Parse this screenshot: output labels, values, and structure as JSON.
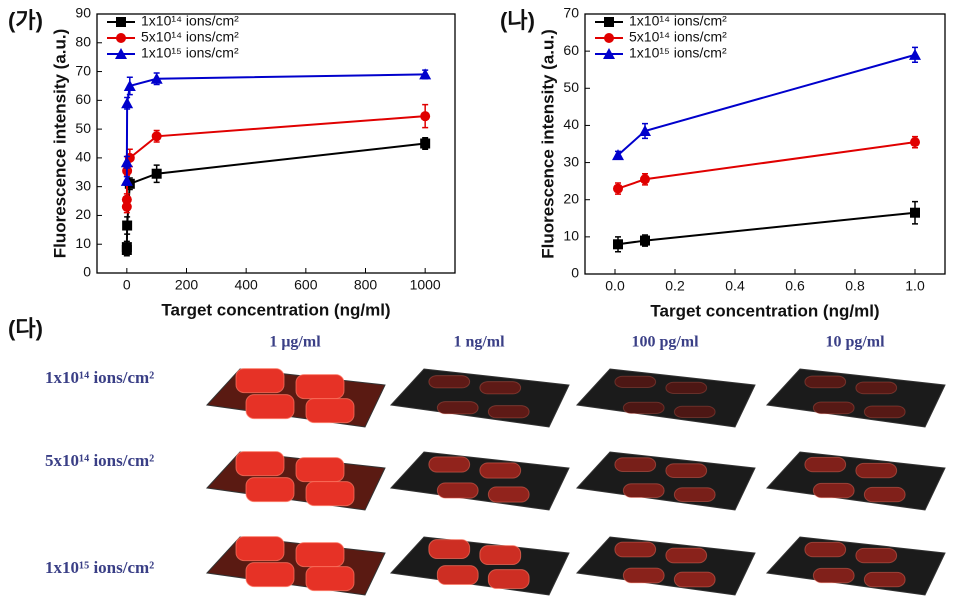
{
  "chart_data": [
    {
      "type": "line",
      "panel_label": "(가)",
      "xlabel": "Target concentration (ng/ml)",
      "ylabel": "Fluorescence intensity (a.u.)",
      "x": [
        0.01,
        0.1,
        1,
        10,
        100,
        1000
      ],
      "series": [
        {
          "name": "1x10¹⁴ ions/cm²",
          "color": "#000000",
          "marker": "square",
          "values": [
            8,
            9,
            16.5,
            31,
            34.5,
            45
          ],
          "errors": [
            2,
            2,
            3,
            2,
            3,
            2
          ]
        },
        {
          "name": "5x10¹⁴ ions/cm²",
          "color": "#e00000",
          "marker": "circle",
          "values": [
            23,
            25.5,
            35.5,
            40,
            47.5,
            54.5
          ],
          "errors": [
            2,
            2,
            1.5,
            3,
            2,
            4
          ]
        },
        {
          "name": "1x10¹⁵ ions/cm²",
          "color": "#0000cc",
          "marker": "triangle",
          "values": [
            32,
            38.5,
            59,
            65,
            67.5,
            69
          ],
          "errors": [
            1.5,
            2,
            2,
            3,
            2,
            1.5
          ]
        }
      ],
      "xlim": [
        -100,
        1100
      ],
      "xticks": [
        0,
        200,
        400,
        600,
        800,
        1000
      ],
      "ylim": [
        0,
        90
      ],
      "yticks": [
        0,
        10,
        20,
        30,
        40,
        50,
        60,
        70,
        80,
        90
      ],
      "legend": "upper left"
    },
    {
      "type": "line",
      "panel_label": "(나)",
      "xlabel": "Target concentration (ng/ml)",
      "ylabel": "Fluorescence intensity (a.u.)",
      "x": [
        0.01,
        0.1,
        1
      ],
      "series": [
        {
          "name": "1x10¹⁴ ions/cm²",
          "color": "#000000",
          "marker": "square",
          "values": [
            8,
            9,
            16.5
          ],
          "errors": [
            2,
            1.5,
            3
          ]
        },
        {
          "name": "5x10¹⁴ ions/cm²",
          "color": "#e00000",
          "marker": "circle",
          "values": [
            23,
            25.5,
            35.5
          ],
          "errors": [
            1.5,
            1.5,
            1.5
          ]
        },
        {
          "name": "1x10¹⁵ ions/cm²",
          "color": "#0000cc",
          "marker": "triangle",
          "values": [
            32,
            38.5,
            59
          ],
          "errors": [
            1,
            2,
            2
          ]
        }
      ],
      "xlim": [
        -0.1,
        1.1
      ],
      "xticks": [
        0.0,
        0.2,
        0.4,
        0.6,
        0.8,
        1.0
      ],
      "ylim": [
        0,
        70
      ],
      "yticks": [
        0,
        10,
        20,
        30,
        40,
        50,
        60,
        70
      ],
      "legend": "upper left"
    }
  ],
  "image_grid": {
    "panel_label": "(다)",
    "columns": [
      "1 μg/ml",
      "1 ng/ml",
      "100 pg/ml",
      "10 pg/ml"
    ],
    "rows": [
      "1x10¹⁴ ions/cm²",
      "5x10¹⁴ ions/cm²",
      "1x10¹⁵ ions/cm²"
    ]
  }
}
